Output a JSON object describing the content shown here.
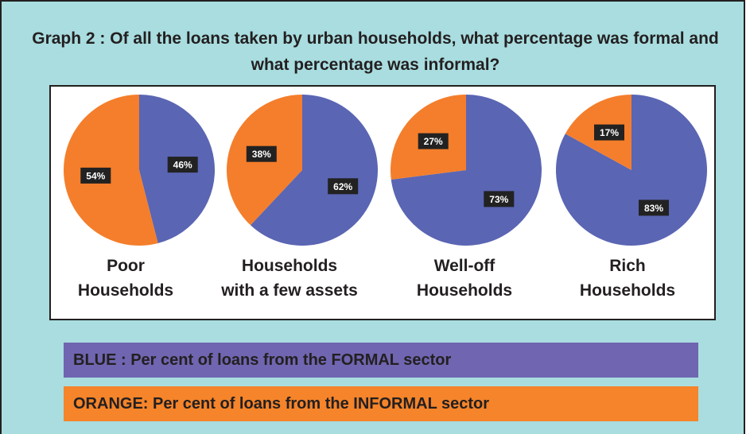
{
  "title": "Graph 2 : Of all the loans taken by urban households, what percentage was formal and what percentage was informal?",
  "colors": {
    "formal": "#5a65b3",
    "informal": "#f47e2b",
    "legend_blue": "#6f65b0",
    "legend_orange": "#f5842a",
    "background": "#a9dde0"
  },
  "legend": {
    "blue": "BLUE : Per cent of loans from the FORMAL sector",
    "orange": "ORANGE: Per cent of loans from the INFORMAL sector"
  },
  "chart_data": [
    {
      "type": "pie",
      "category": "Poor Households",
      "label_lines": [
        "Poor",
        "Households"
      ],
      "values": {
        "formal": 46,
        "informal": 54
      },
      "labels": {
        "formal": "46%",
        "informal": "54%"
      }
    },
    {
      "type": "pie",
      "category": "Households with a few assets",
      "label_lines": [
        "Households",
        "with a few assets"
      ],
      "values": {
        "formal": 62,
        "informal": 38
      },
      "labels": {
        "formal": "62%",
        "informal": "38%"
      }
    },
    {
      "type": "pie",
      "category": "Well-off Households",
      "label_lines": [
        "Well-off",
        "Households"
      ],
      "values": {
        "formal": 73,
        "informal": 27
      },
      "labels": {
        "formal": "73%",
        "informal": "27%"
      }
    },
    {
      "type": "pie",
      "category": "Rich Households",
      "label_lines": [
        "Rich",
        "Households"
      ],
      "values": {
        "formal": 83,
        "informal": 17
      },
      "labels": {
        "formal": "83%",
        "informal": "17%"
      }
    }
  ]
}
